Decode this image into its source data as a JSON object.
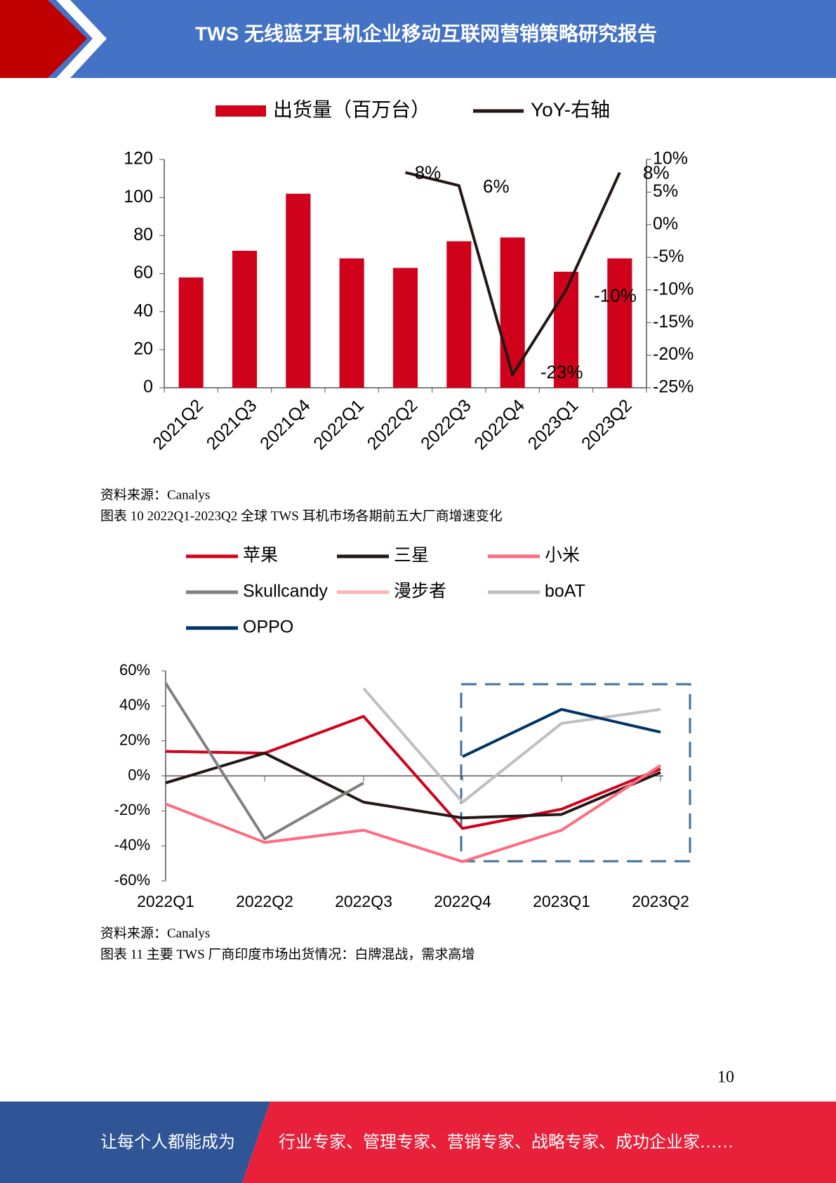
{
  "header": {
    "title": "TWS 无线蓝牙耳机企业移动互联网营销策略研究报告"
  },
  "chart_data": [
    {
      "type": "bar",
      "categories": [
        "2021Q2",
        "2021Q3",
        "2021Q4",
        "2022Q1",
        "2022Q2",
        "2022Q3",
        "2022Q4",
        "2023Q1",
        "2023Q2"
      ],
      "series": [
        {
          "name": "出货量（百万台）",
          "type": "bar",
          "color": "#d0021b",
          "values": [
            58,
            72,
            102,
            68,
            63,
            77,
            79,
            61,
            68
          ]
        },
        {
          "name": "YoY-右轴",
          "type": "line",
          "axis": "y2",
          "color": "#231815",
          "values": [
            null,
            null,
            null,
            null,
            8,
            6,
            -23,
            -10,
            8
          ],
          "value_labels": [
            null,
            null,
            null,
            null,
            "8%",
            "6%",
            "-23%",
            "-10%",
            "8%"
          ]
        }
      ],
      "ylim": [
        0,
        120
      ],
      "yticks": [
        0,
        20,
        40,
        60,
        80,
        100,
        120
      ],
      "y2lim": [
        -25,
        10
      ],
      "y2ticks": [
        {
          "value": -25,
          "label": "-25%"
        },
        {
          "value": -20,
          "label": "-20%"
        },
        {
          "value": -15,
          "label": "-15%"
        },
        {
          "value": -10,
          "label": "-10%"
        },
        {
          "value": -5,
          "label": "-5%"
        },
        {
          "value": 0,
          "label": "0%"
        },
        {
          "value": 5,
          "label": "5%"
        },
        {
          "value": 10,
          "label": "10%"
        }
      ],
      "legend": "top"
    },
    {
      "type": "line",
      "categories": [
        "2022Q1",
        "2022Q2",
        "2022Q3",
        "2022Q4",
        "2023Q1",
        "2023Q2"
      ],
      "series": [
        {
          "name": "苹果",
          "color": "#d0021b",
          "values": [
            14,
            13,
            34,
            -30,
            -19,
            4
          ]
        },
        {
          "name": "三星",
          "color": "#231815",
          "values": [
            -4,
            13,
            -15,
            -24,
            -22,
            2
          ]
        },
        {
          "name": "小米",
          "color": "#ff6b7f",
          "values": [
            -16,
            -38,
            -31,
            -49,
            -31,
            6
          ]
        },
        {
          "name": "Skullcandy",
          "color": "#808080",
          "values": [
            53,
            -36,
            -4,
            null,
            null,
            null
          ]
        },
        {
          "name": "漫步者",
          "color": "#ffb3b3",
          "values": [
            null,
            null,
            null,
            null,
            null,
            null
          ]
        },
        {
          "name": "boAT",
          "color": "#bfbfbf",
          "values": [
            null,
            null,
            50,
            -15,
            30,
            38
          ]
        },
        {
          "name": "OPPO",
          "color": "#003366",
          "values": [
            null,
            null,
            null,
            11,
            38,
            25
          ]
        }
      ],
      "ylim": [
        -60,
        60
      ],
      "yticks": [
        {
          "value": -60,
          "label": "-60%"
        },
        {
          "value": -40,
          "label": "-40%"
        },
        {
          "value": -20,
          "label": "-20%"
        },
        {
          "value": 0,
          "label": "0%"
        },
        {
          "value": 20,
          "label": "20%"
        },
        {
          "value": 40,
          "label": "40%"
        },
        {
          "value": 60,
          "label": "60%"
        }
      ],
      "legend": "top"
    }
  ],
  "captions": {
    "source1": "资料来源：Canalys",
    "figure10": "图表  10 2022Q1-2023Q2 全球 TWS 耳机市场各期前五大厂商增速变化",
    "source2": "资料来源：Canalys",
    "figure11": "图表  11  主要 TWS 厂商印度市场出货情况：白牌混战，需求高增"
  },
  "page_number": "10",
  "footer": {
    "left": "让每个人都能成为",
    "right": "行业专家、管理专家、营销专家、战略专家、成功企业家……"
  }
}
